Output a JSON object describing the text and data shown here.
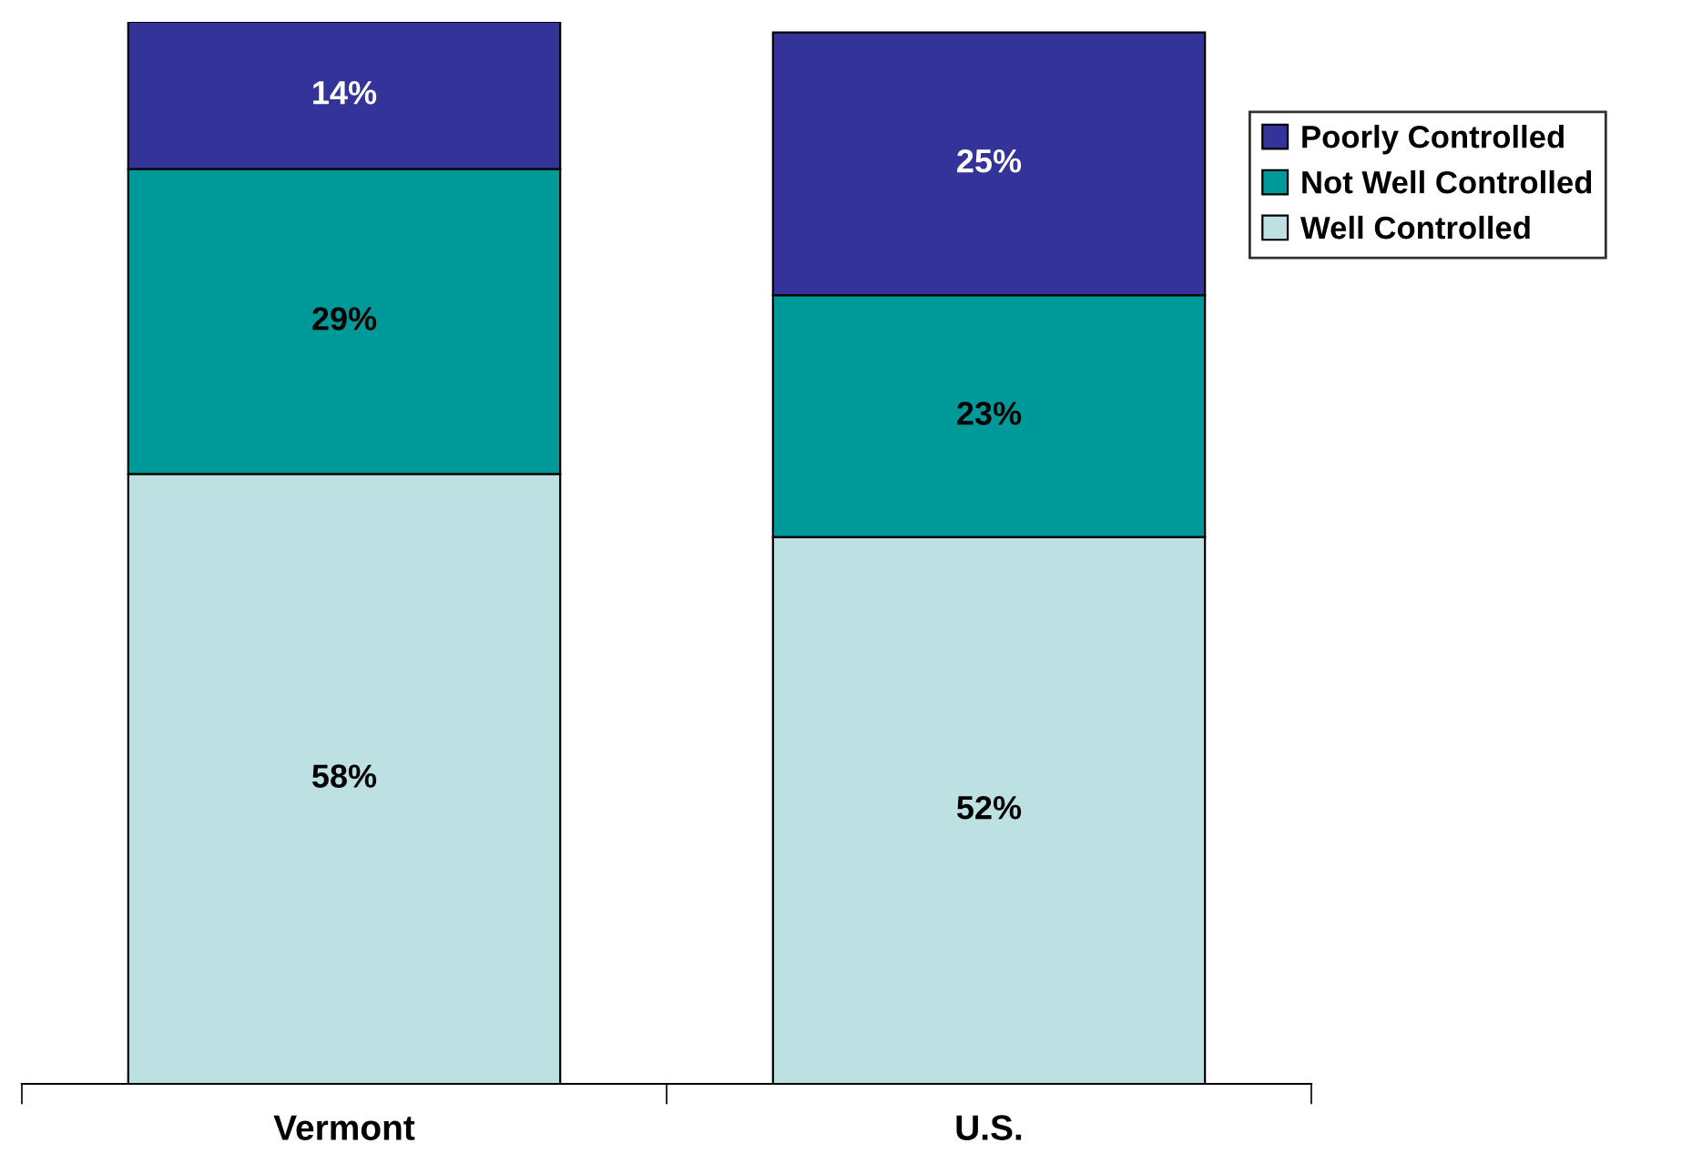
{
  "chart_data": {
    "type": "bar",
    "stacked": true,
    "categories": [
      "Vermont",
      "U.S."
    ],
    "series": [
      {
        "name": "Well Controlled",
        "color": "#bde0e2",
        "values": [
          58,
          52
        ],
        "value_labels": [
          "58%",
          "52%"
        ]
      },
      {
        "name": "Not Well Controlled",
        "color": "#009999",
        "values": [
          29,
          23
        ],
        "value_labels": [
          "29%",
          "23%"
        ]
      },
      {
        "name": "Poorly Controlled",
        "color": "#333399",
        "values": [
          14,
          25
        ],
        "value_labels": [
          "14%",
          "25%"
        ]
      }
    ],
    "legend": "right",
    "grid": false
  }
}
